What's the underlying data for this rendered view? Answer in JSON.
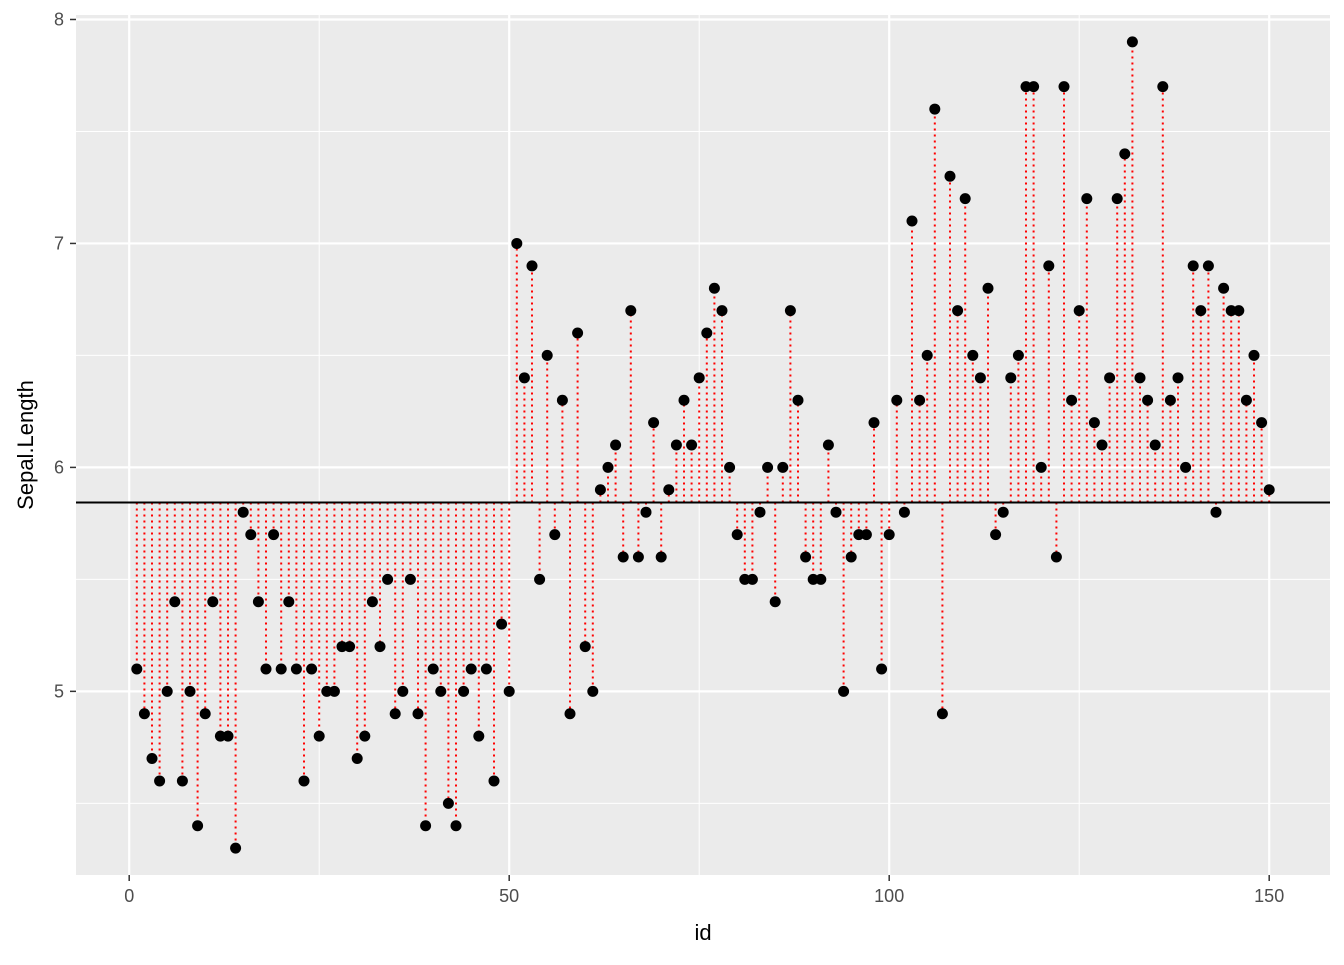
{
  "chart_data": {
    "type": "scatter",
    "xlabel": "id",
    "ylabel": "Sepal.Length",
    "xlim": [
      -7,
      158
    ],
    "ylim": [
      4.18,
      8.02
    ],
    "x_ticks": [
      0,
      50,
      100,
      150
    ],
    "x_tick_labels": [
      "0",
      "50",
      "100",
      "150"
    ],
    "y_ticks": [
      5,
      6,
      7,
      8
    ],
    "y_tick_labels": [
      "5",
      "6",
      "7",
      "8"
    ],
    "grid": true,
    "reference_line": {
      "y": 5.843,
      "color": "#000000"
    },
    "segment_color": "#ff0000",
    "point_color": "#000000",
    "panel_background": "#ebebeb",
    "grid_color": "#ffffff",
    "x": [
      1,
      2,
      3,
      4,
      5,
      6,
      7,
      8,
      9,
      10,
      11,
      12,
      13,
      14,
      15,
      16,
      17,
      18,
      19,
      20,
      21,
      22,
      23,
      24,
      25,
      26,
      27,
      28,
      29,
      30,
      31,
      32,
      33,
      34,
      35,
      36,
      37,
      38,
      39,
      40,
      41,
      42,
      43,
      44,
      45,
      46,
      47,
      48,
      49,
      50,
      51,
      52,
      53,
      54,
      55,
      56,
      57,
      58,
      59,
      60,
      61,
      62,
      63,
      64,
      65,
      66,
      67,
      68,
      69,
      70,
      71,
      72,
      73,
      74,
      75,
      76,
      77,
      78,
      79,
      80,
      81,
      82,
      83,
      84,
      85,
      86,
      87,
      88,
      89,
      90,
      91,
      92,
      93,
      94,
      95,
      96,
      97,
      98,
      99,
      100,
      101,
      102,
      103,
      104,
      105,
      106,
      107,
      108,
      109,
      110,
      111,
      112,
      113,
      114,
      115,
      116,
      117,
      118,
      119,
      120,
      121,
      122,
      123,
      124,
      125,
      126,
      127,
      128,
      129,
      130,
      131,
      132,
      133,
      134,
      135,
      136,
      137,
      138,
      139,
      140,
      141,
      142,
      143,
      144,
      145,
      146,
      147,
      148,
      149,
      150
    ],
    "y": [
      5.1,
      4.9,
      4.7,
      4.6,
      5.0,
      5.4,
      4.6,
      5.0,
      4.4,
      4.9,
      5.4,
      4.8,
      4.8,
      4.3,
      5.8,
      5.7,
      5.4,
      5.1,
      5.7,
      5.1,
      5.4,
      5.1,
      4.6,
      5.1,
      4.8,
      5.0,
      5.0,
      5.2,
      5.2,
      4.7,
      4.8,
      5.4,
      5.2,
      5.5,
      4.9,
      5.0,
      5.5,
      4.9,
      4.4,
      5.1,
      5.0,
      4.5,
      4.4,
      5.0,
      5.1,
      4.8,
      5.1,
      4.6,
      5.3,
      5.0,
      7.0,
      6.4,
      6.9,
      5.5,
      6.5,
      5.7,
      6.3,
      4.9,
      6.6,
      5.2,
      5.0,
      5.9,
      6.0,
      6.1,
      5.6,
      6.7,
      5.6,
      5.8,
      6.2,
      5.6,
      5.9,
      6.1,
      6.3,
      6.1,
      6.4,
      6.6,
      6.8,
      6.7,
      6.0,
      5.7,
      5.5,
      5.5,
      5.8,
      6.0,
      5.4,
      6.0,
      6.7,
      6.3,
      5.6,
      5.5,
      5.5,
      6.1,
      5.8,
      5.0,
      5.6,
      5.7,
      5.7,
      6.2,
      5.1,
      5.7,
      6.3,
      5.8,
      7.1,
      6.3,
      6.5,
      7.6,
      4.9,
      7.3,
      6.7,
      7.2,
      6.5,
      6.4,
      6.8,
      5.7,
      5.8,
      6.4,
      6.5,
      7.7,
      7.7,
      6.0,
      6.9,
      5.6,
      7.7,
      6.3,
      6.7,
      7.2,
      6.2,
      6.1,
      6.4,
      7.2,
      7.4,
      7.9,
      6.4,
      6.3,
      6.1,
      7.7,
      6.3,
      6.4,
      6.0,
      6.9,
      6.7,
      6.9,
      5.8,
      6.8,
      6.7,
      6.7,
      6.3,
      6.5,
      6.2,
      5.9
    ]
  }
}
